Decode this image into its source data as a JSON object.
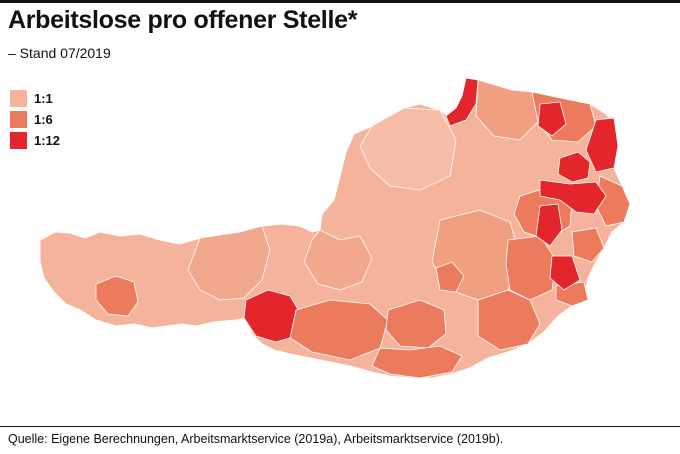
{
  "header": {
    "title": "Arbeitslose pro offener Stelle*",
    "subtitle": "– Stand 07/2019"
  },
  "legend": {
    "items": [
      {
        "label": "1:1",
        "color": "#f4b39a"
      },
      {
        "label": "1:6",
        "color": "#ec7a5d"
      },
      {
        "label": "1:12",
        "color": "#e2262b"
      }
    ]
  },
  "map": {
    "colors": {
      "low": "#f4b39a",
      "mid_low": "#f0a080",
      "mid": "#ec7a5d",
      "high": "#e2262b",
      "border": "#ffffff"
    }
  },
  "footer": {
    "source": "Quelle: Eigene Berechnungen, Arbeitsmarktservice (2019a), Arbeitsmarktservice (2019b)."
  }
}
